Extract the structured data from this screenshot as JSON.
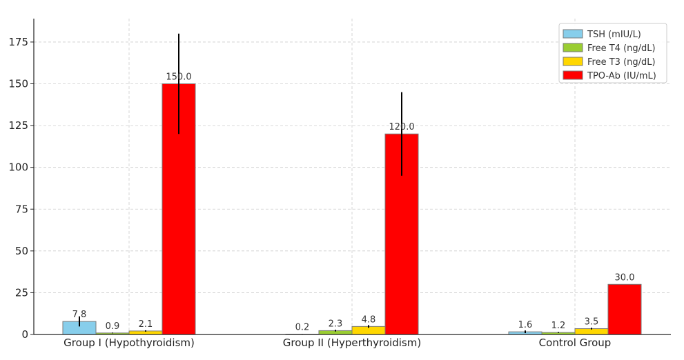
{
  "chart_data": {
    "type": "bar",
    "categories": [
      "Group I (Hypothyroidism)",
      "Group II (Hyperthyroidism)",
      "Control Group"
    ],
    "series": [
      {
        "name": "TSH (mIU/L)",
        "color": "#87ceeb",
        "values": [
          7.8,
          0.2,
          1.6
        ],
        "errors": [
          3.0,
          0.1,
          0.8
        ],
        "value_labels": [
          "7.8",
          "0.2",
          "1.6"
        ]
      },
      {
        "name": "Free T4 (ng/dL)",
        "color": "#9acd32",
        "values": [
          0.9,
          2.3,
          1.2
        ],
        "errors": [
          0.2,
          0.5,
          0.3
        ],
        "value_labels": [
          "0.9",
          "2.3",
          "1.2"
        ]
      },
      {
        "name": "Free T3 (ng/dL)",
        "color": "#ffd700",
        "values": [
          2.1,
          4.8,
          3.5
        ],
        "errors": [
          0.4,
          0.8,
          0.5
        ],
        "value_labels": [
          "2.1",
          "4.8",
          "3.5"
        ]
      },
      {
        "name": "TPO-Ab (IU/mL)",
        "color": "#ff0000",
        "values": [
          150.0,
          120.0,
          30.0
        ],
        "errors": [
          30.0,
          25.0,
          0.0
        ],
        "value_labels": [
          "150.0",
          "120.0",
          "30.0"
        ]
      }
    ],
    "title": "",
    "xlabel": "",
    "ylabel": "",
    "ylim": [
      0,
      189
    ],
    "yticks": [
      "0",
      "25",
      "50",
      "75",
      "100",
      "125",
      "150",
      "175"
    ],
    "grid": true,
    "legend_position": "top-right"
  }
}
